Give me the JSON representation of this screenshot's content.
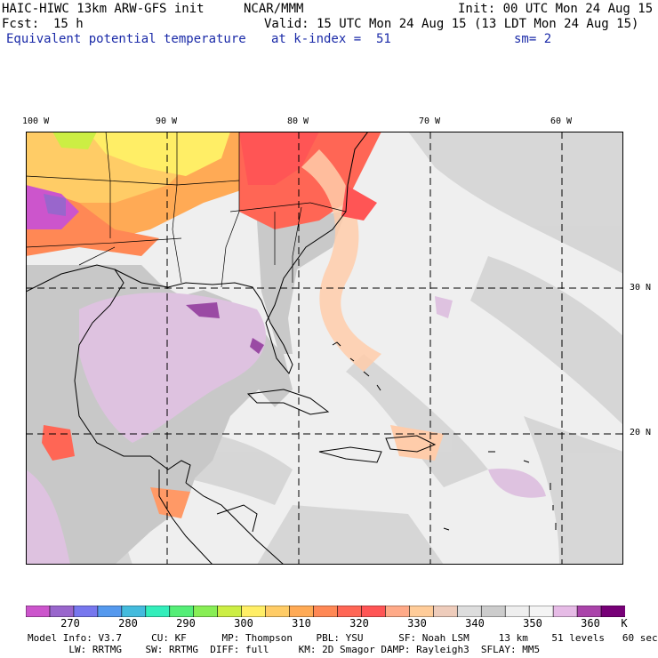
{
  "header": {
    "model": "HAIC-HIWC 13km ARW-GFS init",
    "org": "NCAR/MMM",
    "init": "Init: 00 UTC Mon 24 Aug 15",
    "fcst_label": "Fcst:",
    "fcst_value": "15 h",
    "valid": "Valid: 15 UTC Mon 24 Aug 15 (13 LDT Mon 24 Aug 15)",
    "field": "Equivalent potential temperature",
    "level": "at k-index =  51",
    "smooth": "sm= 2"
  },
  "axes": {
    "lon_labels": [
      "100 W",
      "90 W",
      "80 W",
      "70 W",
      "60 W"
    ],
    "lat_labels": [
      "30 N",
      "20 N"
    ]
  },
  "colorbar": {
    "colors": [
      "#cc55cc",
      "#9966cc",
      "#7777ee",
      "#5599ee",
      "#44bbdd",
      "#33eebb",
      "#55ee77",
      "#88ee55",
      "#ccee44",
      "#ffee66",
      "#ffcc66",
      "#ffaa55",
      "#ff8855",
      "#ff6655",
      "#ff5555",
      "#ffaa88",
      "#ffcc99",
      "#eeccbb",
      "#dddddd",
      "#cccccc",
      "#eeeeee",
      "#f4f4f4",
      "#e6bbe6",
      "#aa44aa",
      "#770077"
    ],
    "labels": [
      "270",
      "280",
      "290",
      "300",
      "310",
      "320",
      "330",
      "340",
      "350",
      "360"
    ],
    "unit": "K"
  },
  "footer": {
    "line1": "Model Info: V3.7     CU: KF      MP: Thompson    PBL: YSU      SF: Noah LSM     13 km    51 levels   60 sec",
    "line2": "       LW: RRTMG    SW: RRTMG  DIFF: full     KM: 2D Smagor DAMP: Rayleigh3  SFLAY: MM5"
  }
}
